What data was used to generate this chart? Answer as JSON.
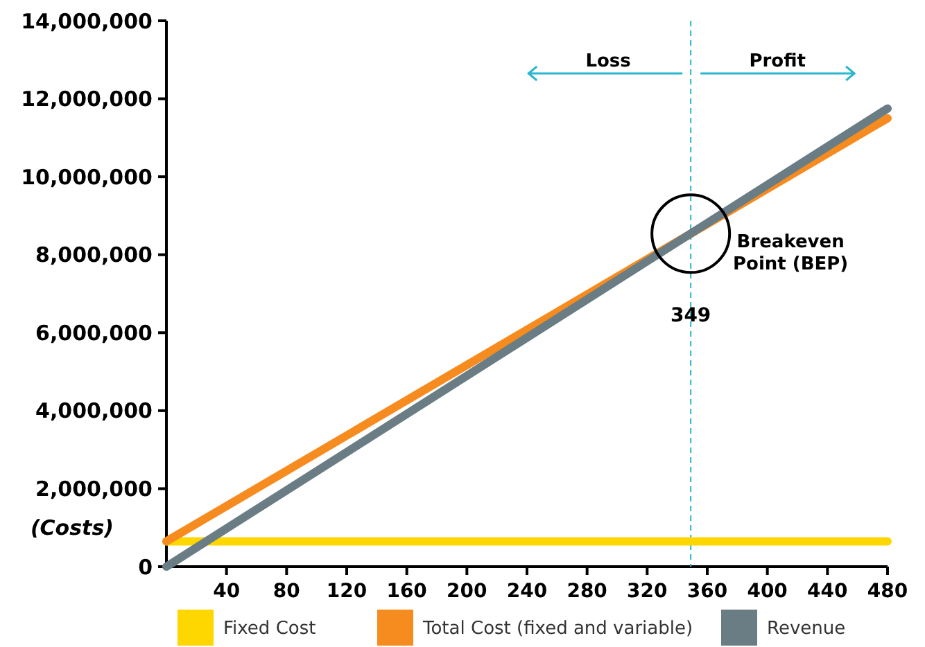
{
  "chart_data": {
    "type": "line",
    "ylabel": "(Costs)",
    "x": [
      0,
      480
    ],
    "series": [
      {
        "name": "Fixed Cost",
        "color": "#ffd700",
        "values": [
          650000,
          650000
        ]
      },
      {
        "name": "Total Cost (fixed and variable)",
        "color": "#f68b1f",
        "values": [
          650000,
          11500000
        ]
      },
      {
        "name": "Revenue",
        "color": "#6a7d85",
        "values": [
          0,
          11750000
        ]
      }
    ],
    "xlim": [
      0,
      480
    ],
    "xticks": [
      40,
      80,
      120,
      160,
      200,
      240,
      280,
      320,
      360,
      400,
      440,
      480
    ],
    "ylim": [
      0,
      14000000
    ],
    "yticks": [
      {
        "value": 0,
        "label": "0"
      },
      {
        "value": 2000000,
        "label": "2,000,000"
      },
      {
        "value": 4000000,
        "label": "4,000,000"
      },
      {
        "value": 6000000,
        "label": "6,000,000"
      },
      {
        "value": 8000000,
        "label": "8,000,000"
      },
      {
        "value": 10000000,
        "label": "10,000,000"
      },
      {
        "value": 12000000,
        "label": "12,000,000"
      },
      {
        "value": 14000000,
        "label": "14,000,000"
      }
    ],
    "ref_lines": [
      {
        "axis": "x",
        "value": 349,
        "label": "349",
        "color": "#29b6d0",
        "line_style": "dashed"
      }
    ],
    "annotations": [
      {
        "text": "Breakeven Point (BEP)",
        "x": 349,
        "y": 8540000
      },
      "Loss",
      "Profit"
    ],
    "grid": false,
    "legend": "bottom",
    "marker": "none",
    "line_style": "solid"
  }
}
